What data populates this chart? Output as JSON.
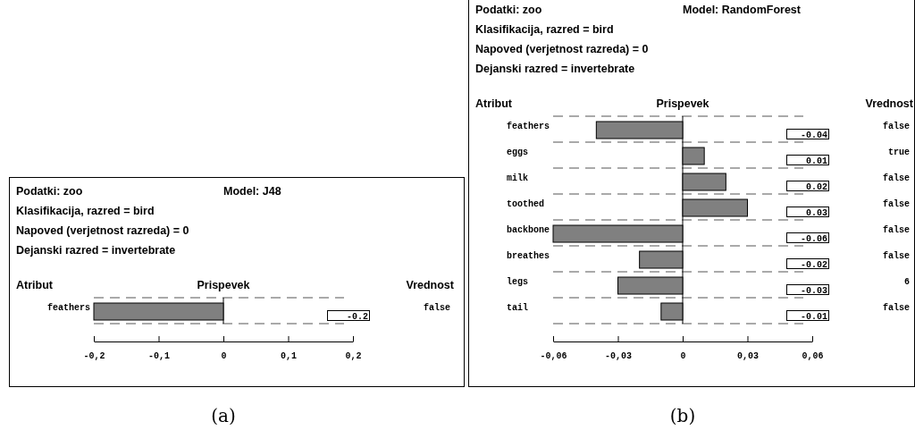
{
  "chart_data": [
    {
      "type": "bar",
      "orientation": "horizontal",
      "title": "Podatki: zoo",
      "subtitle": "Model: J48",
      "ylabel": "Atribut",
      "xlabel": "Prispevek",
      "y2label": "Vrednost",
      "categories": [
        "feathers"
      ],
      "values": [
        -0.2
      ],
      "value_labels": [
        "-0.2"
      ],
      "color": "#808080",
      "xlim": [
        -0.2,
        0.2
      ],
      "xticks": [
        {
          "value": -0.2,
          "label": "-0,2"
        },
        {
          "value": -0.1,
          "label": "-0,1"
        },
        {
          "value": 0,
          "label": "0"
        },
        {
          "value": 0.1,
          "label": "0,1"
        },
        {
          "value": 0.2,
          "label": "0,2"
        }
      ],
      "annotations": [
        "Klasifikacija, razred = bird",
        "Napoved (verjetnost razreda) = 0",
        "Dejanski razred = invertebrate",
        "false",
        "(a)"
      ]
    },
    {
      "type": "bar",
      "orientation": "horizontal",
      "title": "Podatki: zoo",
      "subtitle": "Model: RandomForest",
      "ylabel": "Atribut",
      "xlabel": "Prispevek",
      "y2label": "Vrednost",
      "categories": [
        "feathers",
        "eggs",
        "milk",
        "toothed",
        "backbone",
        "breathes",
        "legs",
        "tail"
      ],
      "values": [
        -0.04,
        0.01,
        0.02,
        0.03,
        -0.06,
        -0.02,
        -0.03,
        -0.01
      ],
      "value_labels": [
        "-0.04",
        "0.01",
        "0.02",
        "0.03",
        "-0.06",
        "-0.02",
        "-0.03",
        "-0.01"
      ],
      "color": "#808080",
      "xlim": [
        -0.06,
        0.06
      ],
      "xticks": [
        {
          "value": -0.06,
          "label": "-0,06"
        },
        {
          "value": -0.03,
          "label": "-0,03"
        },
        {
          "value": 0,
          "label": "0"
        },
        {
          "value": 0.03,
          "label": "0,03"
        },
        {
          "value": 0.06,
          "label": "0,06"
        }
      ],
      "annotations": [
        "Klasifikacija, razred = bird",
        "Napoved (verjetnost razreda) = 0",
        "Dejanski razred = invertebrate",
        "false",
        "true",
        "false",
        "false",
        "false",
        "false",
        "6",
        "false",
        "(b)"
      ]
    }
  ]
}
